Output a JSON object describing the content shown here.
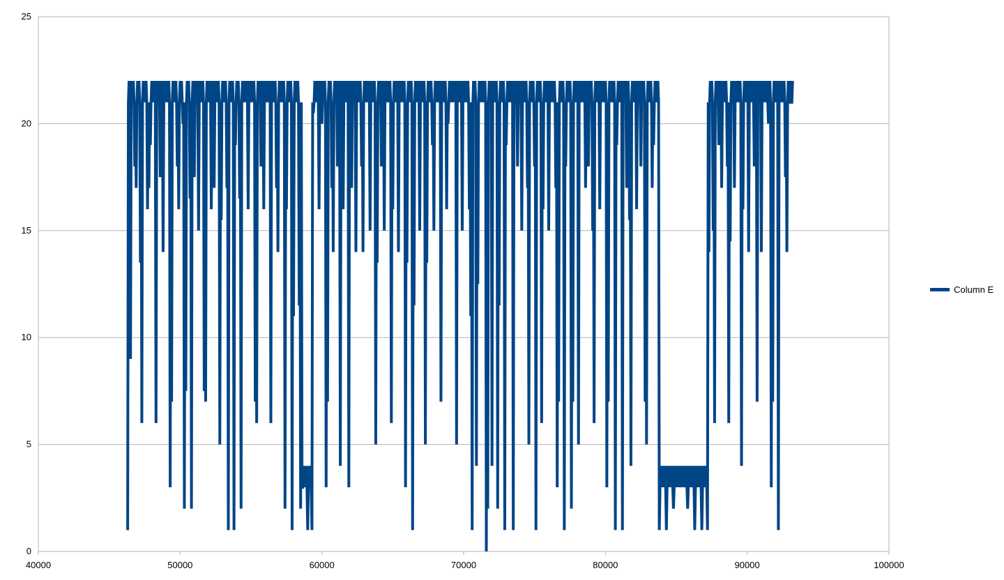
{
  "chart_data": {
    "type": "line",
    "title": "",
    "xlabel": "",
    "ylabel": "",
    "xlim": [
      40000,
      100000
    ],
    "ylim": [
      0,
      25
    ],
    "x_ticks": [
      "40000",
      "50000",
      "60000",
      "70000",
      "80000",
      "90000",
      "100000"
    ],
    "y_ticks": [
      "0",
      "5",
      "10",
      "15",
      "20",
      "25"
    ],
    "grid": "horizontal",
    "legend_position": "right",
    "series": [
      {
        "name": "Column E",
        "color": "#004586",
        "x_range": [
          46300,
          93200
        ],
        "baseline_band": [
          21,
          22
        ],
        "low_band_segments": [
          {
            "x": [
              58600,
              59300
            ],
            "band": [
              3,
              4
            ]
          },
          {
            "x": [
              83800,
              87200
            ],
            "band": [
              3,
              4
            ]
          }
        ],
        "dips": [
          {
            "x": 46300,
            "y": 1
          },
          {
            "x": 46500,
            "y": 9
          },
          {
            "x": 46800,
            "y": 18
          },
          {
            "x": 46900,
            "y": 17
          },
          {
            "x": 47200,
            "y": 13.5
          },
          {
            "x": 47300,
            "y": 6
          },
          {
            "x": 47700,
            "y": 16
          },
          {
            "x": 47800,
            "y": 17
          },
          {
            "x": 47900,
            "y": 19
          },
          {
            "x": 48300,
            "y": 6
          },
          {
            "x": 48600,
            "y": 17.5
          },
          {
            "x": 48800,
            "y": 14
          },
          {
            "x": 49300,
            "y": 3
          },
          {
            "x": 49400,
            "y": 7
          },
          {
            "x": 49800,
            "y": 18
          },
          {
            "x": 49900,
            "y": 16
          },
          {
            "x": 50200,
            "y": 20
          },
          {
            "x": 50300,
            "y": 2
          },
          {
            "x": 50400,
            "y": 7.5
          },
          {
            "x": 50700,
            "y": 16.5
          },
          {
            "x": 50800,
            "y": 2
          },
          {
            "x": 51000,
            "y": 17.5
          },
          {
            "x": 51300,
            "y": 15
          },
          {
            "x": 51700,
            "y": 7.5
          },
          {
            "x": 51800,
            "y": 7
          },
          {
            "x": 52200,
            "y": 16
          },
          {
            "x": 52400,
            "y": 17
          },
          {
            "x": 52800,
            "y": 5
          },
          {
            "x": 52900,
            "y": 15.5
          },
          {
            "x": 53300,
            "y": 17
          },
          {
            "x": 53400,
            "y": 1
          },
          {
            "x": 53800,
            "y": 1
          },
          {
            "x": 53900,
            "y": 19
          },
          {
            "x": 54200,
            "y": 16.5
          },
          {
            "x": 54300,
            "y": 2
          },
          {
            "x": 54800,
            "y": 16
          },
          {
            "x": 55300,
            "y": 7
          },
          {
            "x": 55400,
            "y": 6
          },
          {
            "x": 55700,
            "y": 18
          },
          {
            "x": 55900,
            "y": 16
          },
          {
            "x": 56400,
            "y": 6
          },
          {
            "x": 56800,
            "y": 17
          },
          {
            "x": 56900,
            "y": 14
          },
          {
            "x": 57400,
            "y": 2
          },
          {
            "x": 57500,
            "y": 16
          },
          {
            "x": 57900,
            "y": 1
          },
          {
            "x": 58000,
            "y": 11
          },
          {
            "x": 58400,
            "y": 11.5
          },
          {
            "x": 58500,
            "y": 2
          },
          {
            "x": 58600,
            "y": 3
          },
          {
            "x": 59000,
            "y": 1
          },
          {
            "x": 59300,
            "y": 1
          },
          {
            "x": 59400,
            "y": 20.5
          },
          {
            "x": 59800,
            "y": 16
          },
          {
            "x": 60000,
            "y": 20
          },
          {
            "x": 60300,
            "y": 3
          },
          {
            "x": 60400,
            "y": 7
          },
          {
            "x": 60700,
            "y": 17
          },
          {
            "x": 60800,
            "y": 14
          },
          {
            "x": 61100,
            "y": 18
          },
          {
            "x": 61300,
            "y": 4
          },
          {
            "x": 61500,
            "y": 16
          },
          {
            "x": 61900,
            "y": 3
          },
          {
            "x": 62100,
            "y": 17
          },
          {
            "x": 62400,
            "y": 14
          },
          {
            "x": 62800,
            "y": 18
          },
          {
            "x": 62900,
            "y": 14
          },
          {
            "x": 63400,
            "y": 15
          },
          {
            "x": 63800,
            "y": 5
          },
          {
            "x": 63900,
            "y": 13.5
          },
          {
            "x": 64200,
            "y": 18
          },
          {
            "x": 64400,
            "y": 15
          },
          {
            "x": 64900,
            "y": 6
          },
          {
            "x": 65000,
            "y": 16
          },
          {
            "x": 65400,
            "y": 14
          },
          {
            "x": 65900,
            "y": 3
          },
          {
            "x": 66000,
            "y": 13.5
          },
          {
            "x": 66400,
            "y": 1
          },
          {
            "x": 66500,
            "y": 11.5
          },
          {
            "x": 66900,
            "y": 15
          },
          {
            "x": 67300,
            "y": 5
          },
          {
            "x": 67400,
            "y": 13.5
          },
          {
            "x": 67800,
            "y": 19
          },
          {
            "x": 67900,
            "y": 15
          },
          {
            "x": 68400,
            "y": 7
          },
          {
            "x": 68800,
            "y": 16
          },
          {
            "x": 68900,
            "y": 20
          },
          {
            "x": 69500,
            "y": 5
          },
          {
            "x": 69900,
            "y": 15
          },
          {
            "x": 70400,
            "y": 16
          },
          {
            "x": 70500,
            "y": 11
          },
          {
            "x": 70600,
            "y": 1
          },
          {
            "x": 70900,
            "y": 4
          },
          {
            "x": 71000,
            "y": 12.5
          },
          {
            "x": 71600,
            "y": 0
          },
          {
            "x": 71700,
            "y": 2
          },
          {
            "x": 72000,
            "y": 4
          },
          {
            "x": 72400,
            "y": 2
          },
          {
            "x": 72500,
            "y": 11.5
          },
          {
            "x": 72900,
            "y": 1
          },
          {
            "x": 73000,
            "y": 19
          },
          {
            "x": 73500,
            "y": 1
          },
          {
            "x": 73800,
            "y": 18
          },
          {
            "x": 74100,
            "y": 15
          },
          {
            "x": 74500,
            "y": 17
          },
          {
            "x": 74600,
            "y": 5
          },
          {
            "x": 75000,
            "y": 18
          },
          {
            "x": 75100,
            "y": 1
          },
          {
            "x": 75500,
            "y": 6
          },
          {
            "x": 75600,
            "y": 16
          },
          {
            "x": 76000,
            "y": 15
          },
          {
            "x": 76500,
            "y": 17
          },
          {
            "x": 76600,
            "y": 3
          },
          {
            "x": 76700,
            "y": 7
          },
          {
            "x": 77100,
            "y": 1
          },
          {
            "x": 77200,
            "y": 18
          },
          {
            "x": 77600,
            "y": 2
          },
          {
            "x": 77700,
            "y": 7
          },
          {
            "x": 78100,
            "y": 5
          },
          {
            "x": 78600,
            "y": 17
          },
          {
            "x": 78800,
            "y": 18
          },
          {
            "x": 79100,
            "y": 15
          },
          {
            "x": 79200,
            "y": 6
          },
          {
            "x": 79600,
            "y": 16
          },
          {
            "x": 80100,
            "y": 3
          },
          {
            "x": 80200,
            "y": 7
          },
          {
            "x": 80700,
            "y": 1
          },
          {
            "x": 80800,
            "y": 19
          },
          {
            "x": 81200,
            "y": 1
          },
          {
            "x": 81500,
            "y": 17
          },
          {
            "x": 81700,
            "y": 15.5
          },
          {
            "x": 81800,
            "y": 4
          },
          {
            "x": 82200,
            "y": 16
          },
          {
            "x": 82500,
            "y": 18
          },
          {
            "x": 82800,
            "y": 7
          },
          {
            "x": 82900,
            "y": 5
          },
          {
            "x": 83300,
            "y": 17
          },
          {
            "x": 83400,
            "y": 19
          },
          {
            "x": 83800,
            "y": 1
          },
          {
            "x": 84300,
            "y": 1
          },
          {
            "x": 84800,
            "y": 2
          },
          {
            "x": 85800,
            "y": 2
          },
          {
            "x": 86300,
            "y": 1
          },
          {
            "x": 86800,
            "y": 1
          },
          {
            "x": 87200,
            "y": 1
          },
          {
            "x": 87300,
            "y": 14
          },
          {
            "x": 87600,
            "y": 15
          },
          {
            "x": 87700,
            "y": 6
          },
          {
            "x": 88000,
            "y": 19
          },
          {
            "x": 88200,
            "y": 17
          },
          {
            "x": 88600,
            "y": 18
          },
          {
            "x": 88700,
            "y": 6
          },
          {
            "x": 88800,
            "y": 14.5
          },
          {
            "x": 89100,
            "y": 17
          },
          {
            "x": 89600,
            "y": 4
          },
          {
            "x": 89700,
            "y": 16
          },
          {
            "x": 90100,
            "y": 14
          },
          {
            "x": 90500,
            "y": 18
          },
          {
            "x": 90700,
            "y": 7
          },
          {
            "x": 91000,
            "y": 14
          },
          {
            "x": 91500,
            "y": 20
          },
          {
            "x": 91700,
            "y": 3
          },
          {
            "x": 91800,
            "y": 7
          },
          {
            "x": 92200,
            "y": 1
          },
          {
            "x": 92700,
            "y": 17.5
          },
          {
            "x": 92800,
            "y": 14
          },
          {
            "x": 93100,
            "y": 21
          }
        ]
      }
    ]
  }
}
